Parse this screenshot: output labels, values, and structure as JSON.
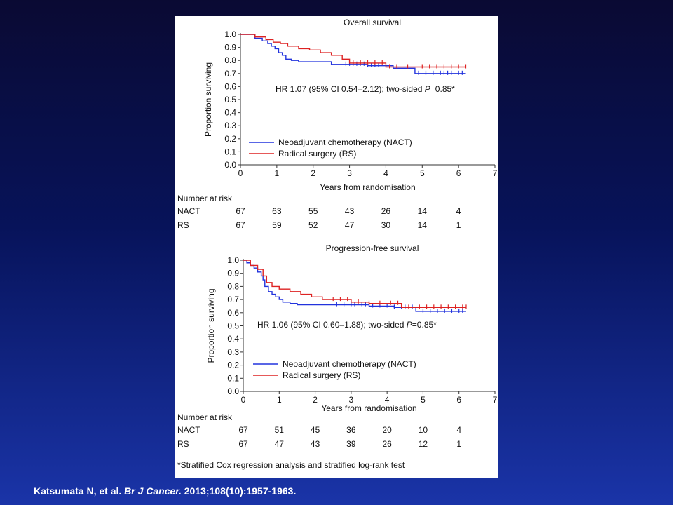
{
  "citation": {
    "authors": "Katsumata N, et al.",
    "journal": "Br J Cancer.",
    "ref": "2013;108(10):1957-1963."
  },
  "footnote": "*Stratified Cox regression analysis and stratified log-rank test",
  "colors": {
    "nact": "#2233dd",
    "rs": "#dd2222"
  },
  "chart_data": [
    {
      "type": "line",
      "title": "Overall survival",
      "xlabel": "Years from randomisation",
      "ylabel": "Proportion surviving",
      "xlim": [
        0,
        7
      ],
      "ylim": [
        0,
        1.0
      ],
      "xticks": [
        "0",
        "1",
        "2",
        "3",
        "4",
        "5",
        "6",
        "7"
      ],
      "yticks": [
        "0.0",
        "0.1",
        "0.2",
        "0.3",
        "0.4",
        "0.5",
        "0.6",
        "0.7",
        "0.8",
        "0.9",
        "1.0"
      ],
      "annotation": {
        "pre": "HR 1.07 (95% CI 0.54–2.12); two-sided ",
        "p": "P",
        "post": "=0.85*"
      },
      "legend": [
        "Neoadjuvant chemotherapy (NACT)",
        "Radical surgery (RS)"
      ],
      "series": [
        {
          "name": "Neoadjuvant chemotherapy (NACT)",
          "color": "#2233dd",
          "x": [
            0,
            0.4,
            0.6,
            0.75,
            0.85,
            0.95,
            1.05,
            1.15,
            1.25,
            1.4,
            1.6,
            2.2,
            2.5,
            2.8,
            3.5,
            4.0,
            4.2,
            4.8,
            6.2
          ],
          "y": [
            1.0,
            0.97,
            0.95,
            0.93,
            0.91,
            0.89,
            0.86,
            0.84,
            0.81,
            0.8,
            0.79,
            0.79,
            0.77,
            0.77,
            0.76,
            0.76,
            0.74,
            0.7,
            0.7
          ],
          "censor": [
            2.9,
            3.0,
            3.1,
            3.2,
            3.3,
            3.4,
            3.5,
            3.6,
            3.7,
            3.8,
            4.9,
            5.1,
            5.3,
            5.5,
            5.6,
            5.7,
            5.8,
            6.0,
            6.1
          ]
        },
        {
          "name": "Radical surgery (RS)",
          "color": "#dd2222",
          "x": [
            0,
            0.4,
            0.7,
            0.9,
            1.1,
            1.3,
            1.6,
            1.9,
            2.2,
            2.5,
            2.8,
            3.0,
            3.5,
            4.0,
            4.8,
            6.2
          ],
          "y": [
            1.0,
            0.98,
            0.96,
            0.94,
            0.93,
            0.91,
            0.89,
            0.88,
            0.86,
            0.84,
            0.81,
            0.78,
            0.78,
            0.75,
            0.75,
            0.75
          ],
          "censor": [
            3.1,
            3.3,
            3.5,
            3.7,
            3.9,
            4.1,
            4.3,
            4.6,
            5.0,
            5.2,
            5.4,
            5.6,
            5.8,
            6.0,
            6.2
          ]
        }
      ],
      "risk_table": {
        "title": "Number at risk",
        "rows": [
          {
            "label": "NACT",
            "values": [
              "67",
              "63",
              "55",
              "43",
              "26",
              "14",
              "4"
            ]
          },
          {
            "label": "RS",
            "values": [
              "67",
              "59",
              "52",
              "47",
              "30",
              "14",
              "1"
            ]
          }
        ]
      }
    },
    {
      "type": "line",
      "title": "Progression-free survival",
      "xlabel": "Years from randomisation",
      "ylabel": "Proportion surviving",
      "xlim": [
        0,
        7
      ],
      "ylim": [
        0,
        1.0
      ],
      "xticks": [
        "0",
        "1",
        "2",
        "3",
        "4",
        "5",
        "6",
        "7"
      ],
      "yticks": [
        "0.0",
        "0.1",
        "0.2",
        "0.3",
        "0.4",
        "0.5",
        "0.6",
        "0.7",
        "0.8",
        "0.9",
        "1.0"
      ],
      "annotation": {
        "pre": "HR 1.06 (95% CI 0.60–1.88); two-sided ",
        "p": "P",
        "post": "=0.85*"
      },
      "legend": [
        "Neoadjuvant chemotherapy (NACT)",
        "Radical surgery (RS)"
      ],
      "series": [
        {
          "name": "Neoadjuvant chemotherapy (NACT)",
          "color": "#2233dd",
          "x": [
            0,
            0.1,
            0.2,
            0.3,
            0.4,
            0.5,
            0.55,
            0.6,
            0.7,
            0.8,
            0.9,
            1.0,
            1.1,
            1.3,
            1.5,
            2.5,
            3.0,
            3.5,
            4.2,
            4.8,
            6.2
          ],
          "y": [
            1.0,
            0.98,
            0.96,
            0.94,
            0.91,
            0.88,
            0.85,
            0.8,
            0.76,
            0.74,
            0.72,
            0.7,
            0.68,
            0.67,
            0.66,
            0.66,
            0.66,
            0.65,
            0.64,
            0.61,
            0.61
          ],
          "censor": [
            2.6,
            2.8,
            3.0,
            3.1,
            3.3,
            3.4,
            3.6,
            3.8,
            4.0,
            4.2,
            4.4,
            4.5,
            4.7,
            5.0,
            5.2,
            5.4,
            5.6,
            5.8,
            6.0,
            6.1
          ]
        },
        {
          "name": "Radical surgery (RS)",
          "color": "#dd2222",
          "x": [
            0,
            0.2,
            0.4,
            0.55,
            0.65,
            0.8,
            1.0,
            1.3,
            1.6,
            1.9,
            2.2,
            2.6,
            3.0,
            3.5,
            4.0,
            4.4,
            5.0,
            6.2
          ],
          "y": [
            1.0,
            0.96,
            0.93,
            0.88,
            0.83,
            0.8,
            0.78,
            0.76,
            0.74,
            0.72,
            0.7,
            0.7,
            0.68,
            0.67,
            0.67,
            0.64,
            0.64,
            0.64
          ],
          "censor": [
            2.5,
            2.7,
            2.9,
            3.2,
            3.5,
            3.8,
            4.1,
            4.3,
            4.6,
            4.9,
            5.1,
            5.3,
            5.5,
            5.7,
            5.9,
            6.1,
            6.2
          ]
        }
      ],
      "risk_table": {
        "title": "Number at risk",
        "rows": [
          {
            "label": "NACT",
            "values": [
              "67",
              "51",
              "45",
              "36",
              "20",
              "10",
              "4"
            ]
          },
          {
            "label": "RS",
            "values": [
              "67",
              "47",
              "43",
              "39",
              "26",
              "12",
              "1"
            ]
          }
        ]
      }
    }
  ]
}
